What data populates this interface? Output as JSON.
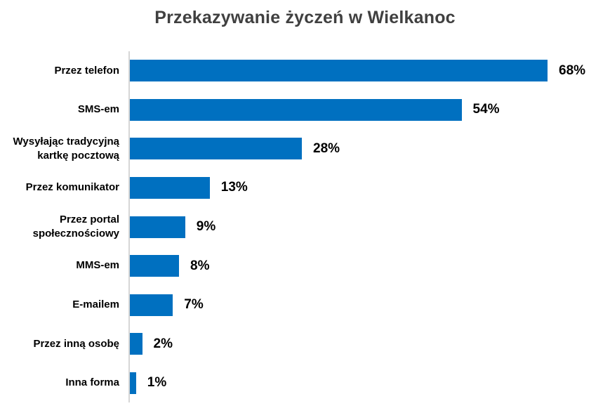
{
  "title": "Przekazywanie życzeń w Wielkanoc",
  "colors": {
    "bar": "#0070C0",
    "axis": "#D6D6D6",
    "title": "#404040",
    "label": "#000000"
  },
  "chart_data": {
    "type": "bar",
    "orientation": "horizontal",
    "title": "Przekazywanie życzeń w Wielkanoc",
    "xlabel": "",
    "ylabel": "",
    "categories": [
      "Przez telefon",
      "SMS-em",
      "Wysyłając tradycyjną kartkę pocztową",
      "Przez komunikator",
      "Przez portal społecznościowy",
      "MMS-em",
      "E-mailem",
      "Przez inną osobę",
      "Inna forma"
    ],
    "values": [
      68,
      54,
      28,
      13,
      9,
      8,
      7,
      2,
      1
    ],
    "value_labels": [
      "68%",
      "54%",
      "28%",
      "13%",
      "9%",
      "8%",
      "7%",
      "2%",
      "1%"
    ],
    "xlim": [
      0,
      68
    ],
    "grid": false,
    "legend": null,
    "data_labels": "outside-end"
  }
}
